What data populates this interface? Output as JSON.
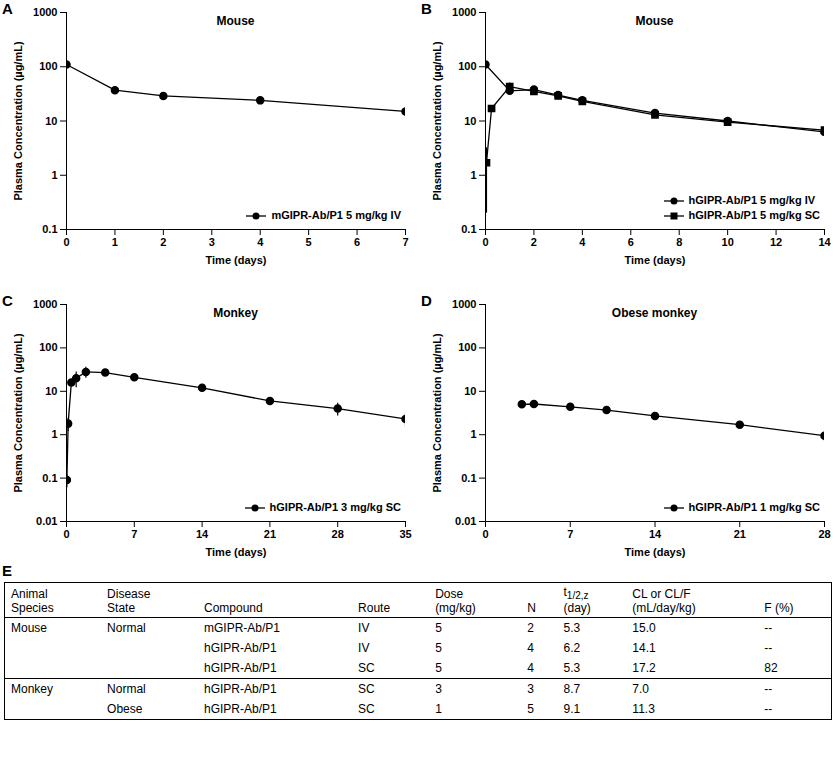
{
  "chart_data": [
    {
      "panel": "A",
      "type": "line",
      "title": "Mouse",
      "x_label": "Time (days)",
      "y_label": "Plasma Concentration (µg/mL)",
      "log": "y",
      "xlim": [
        0,
        7
      ],
      "xticks": [
        0,
        1,
        2,
        3,
        4,
        5,
        6,
        7
      ],
      "ylim": [
        0.1,
        1000
      ],
      "yticks": [
        0.1,
        1,
        10,
        100,
        1000
      ],
      "legend": "lower right",
      "series": [
        {
          "name": "mGIPR-Ab/P1 5 mg/kg IV",
          "color": "#000000",
          "marker": "circle",
          "x": [
            0,
            1,
            2,
            4,
            7
          ],
          "values": [
            110,
            37,
            29,
            24,
            15
          ],
          "error": [
            null,
            3,
            3,
            2,
            3
          ]
        }
      ]
    },
    {
      "panel": "B",
      "type": "line",
      "title": "Mouse",
      "x_label": "Time (days)",
      "y_label": "Plasma Concentration (µg/mL)",
      "log": "y",
      "xlim": [
        0,
        14
      ],
      "xticks": [
        0,
        2,
        4,
        6,
        8,
        10,
        12,
        14
      ],
      "ylim": [
        0.1,
        1000
      ],
      "yticks": [
        0.1,
        1,
        10,
        100,
        1000
      ],
      "legend": "lower right",
      "series": [
        {
          "name": "hGIPR-Ab/P1 5 mg/kg IV",
          "color": "#000000",
          "marker": "circle",
          "x": [
            0,
            1,
            2,
            3,
            4,
            7,
            10,
            14
          ],
          "values": [
            110,
            36,
            38,
            30,
            24,
            14,
            10,
            6.3
          ],
          "error": [
            null,
            3,
            3,
            2,
            2,
            1,
            1,
            0.8
          ]
        },
        {
          "name": "hGIPR-Ab/P1 5 mg/kg SC",
          "color": "#000000",
          "marker": "square",
          "x": [
            0.04,
            0.25,
            1,
            2,
            3,
            4,
            7,
            10,
            14
          ],
          "values": [
            1.7,
            17,
            43,
            35,
            29,
            23,
            13,
            9.5,
            6.8
          ],
          "error": [
            1.5,
            2,
            7,
            3,
            3,
            2,
            1,
            1,
            1
          ]
        }
      ]
    },
    {
      "panel": "C",
      "type": "line",
      "title": "Monkey",
      "x_label": "Time (days)",
      "y_label": "Plasma Concentration (µg/mL)",
      "log": "y",
      "xlim": [
        0,
        35
      ],
      "xticks": [
        0,
        7,
        14,
        21,
        28,
        35
      ],
      "ylim": [
        0.01,
        1000
      ],
      "yticks": [
        0.01,
        0.1,
        1,
        10,
        100,
        1000
      ],
      "legend": "lower right",
      "series": [
        {
          "name": "hGIPR-Ab/P1 3 mg/kg SC",
          "color": "#000000",
          "marker": "circle",
          "x": [
            0.04,
            0.17,
            0.5,
            1,
            2,
            4,
            7,
            14,
            21,
            28,
            35
          ],
          "values": [
            0.09,
            1.8,
            16,
            20,
            28,
            27,
            21,
            12,
            6,
            4,
            2.3
          ],
          "error": [
            0.03,
            0.6,
            3,
            8,
            8,
            3,
            2,
            2,
            0.6,
            1.3,
            0.8
          ]
        }
      ]
    },
    {
      "panel": "D",
      "type": "line",
      "title": "Obese monkey",
      "x_label": "Time (days)",
      "y_label": "Plasma Concentration (µg/mL)",
      "log": "y",
      "xlim": [
        0,
        28
      ],
      "xticks": [
        0,
        7,
        14,
        21,
        28
      ],
      "ylim": [
        0.01,
        1000
      ],
      "yticks": [
        0.01,
        0.1,
        1,
        10,
        100,
        1000
      ],
      "legend": "lower right",
      "series": [
        {
          "name": "hGIPR-Ab/P1 1 mg/kg SC",
          "color": "#000000",
          "marker": "circle",
          "x": [
            3,
            4,
            7,
            10,
            14,
            21,
            28
          ],
          "values": [
            5.0,
            5.1,
            4.4,
            3.7,
            2.7,
            1.7,
            0.95
          ],
          "error": [
            0.6,
            0.6,
            0.3,
            0.3,
            0.2,
            0.3,
            0.25
          ]
        }
      ]
    }
  ],
  "table": {
    "panel": "E",
    "header": [
      [
        "Animal",
        "Species"
      ],
      [
        "Disease",
        "State"
      ],
      [
        "Compound"
      ],
      [
        "Route"
      ],
      [
        "Dose",
        "(mg/kg)"
      ],
      [
        "N"
      ],
      [
        {
          "text": "t",
          "sub": "1/2,z"
        },
        "(day)"
      ],
      [
        "CL or CL/F",
        "(mL/day/kg)"
      ],
      [
        "F (%)"
      ]
    ],
    "rows": [
      [
        "Mouse",
        "Normal",
        "mGIPR-Ab/P1",
        "IV",
        "5",
        "2",
        "5.3",
        "15.0",
        "--"
      ],
      [
        null,
        null,
        "hGIPR-Ab/P1",
        "IV",
        "5",
        "4",
        "6.2",
        "14.1",
        "--"
      ],
      [
        null,
        null,
        "hGIPR-Ab/P1",
        "SC",
        "5",
        "4",
        "5.3",
        "17.2",
        "82"
      ],
      [
        "Monkey",
        "Normal",
        "hGIPR-Ab/P1",
        "SC",
        "3",
        "3",
        "8.7",
        "7.0",
        "--"
      ],
      [
        null,
        "Obese",
        "hGIPR-Ab/P1",
        "SC",
        "1",
        "5",
        "9.1",
        "11.3",
        "--"
      ]
    ]
  }
}
